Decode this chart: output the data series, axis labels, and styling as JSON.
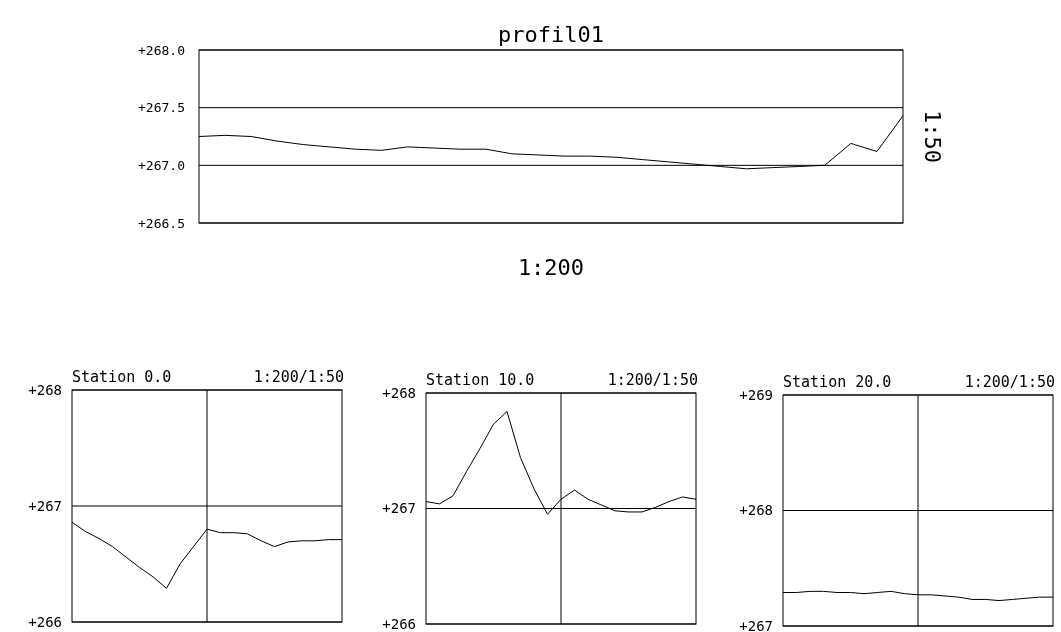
{
  "chart_data": [
    {
      "type": "line",
      "title": "profil01",
      "xlabel": "1:200",
      "y2label": "1:50",
      "categories": [
        null,
        null,
        null,
        null,
        null,
        null,
        null,
        null,
        null,
        null,
        null,
        null,
        null,
        null,
        null,
        null,
        null,
        null,
        null,
        null,
        null,
        null,
        null,
        null,
        null,
        null,
        null,
        null
      ],
      "series": [
        {
          "color": "#000000",
          "values": [
            267.25,
            267.26,
            267.25,
            267.21,
            267.18,
            267.16,
            267.14,
            267.13,
            267.16,
            267.15,
            267.14,
            267.14,
            267.1,
            267.09,
            267.08,
            267.08,
            267.07,
            267.05,
            267.03,
            267.01,
            266.99,
            266.97,
            266.98,
            266.99,
            267.0,
            267.19,
            267.12,
            267.43
          ]
        }
      ],
      "ylim": [
        266.5,
        268.0
      ],
      "yticks": [
        {
          "value": 266.5,
          "label": "+266.5"
        },
        {
          "value": 267.0,
          "label": "+267.0"
        },
        {
          "value": 267.5,
          "label": "+267.5"
        },
        {
          "value": 268.0,
          "label": "+268.0"
        }
      ],
      "grid": "y",
      "tick_labels": "y",
      "marker": "none"
    },
    {
      "type": "line",
      "title": "Station 0.0",
      "subtitle": "1:200/1:50",
      "categories": [
        null,
        null,
        null,
        null,
        null,
        null,
        null,
        null,
        null,
        null,
        null,
        null,
        null,
        null,
        null,
        null,
        null,
        null,
        null,
        null,
        null
      ],
      "series": [
        {
          "color": "#000000",
          "values": [
            266.86,
            266.78,
            266.72,
            266.65,
            266.56,
            266.47,
            266.39,
            266.29,
            266.5,
            266.65,
            266.8,
            266.77,
            266.77,
            266.76,
            266.7,
            266.65,
            266.69,
            266.7,
            266.7,
            266.71,
            266.71
          ]
        }
      ],
      "ylim": [
        266,
        268
      ],
      "yticks": [
        {
          "value": 266,
          "label": "+266"
        },
        {
          "value": 267,
          "label": "+267"
        },
        {
          "value": 268,
          "label": "+268"
        }
      ],
      "grid": true,
      "tick_labels": "y",
      "marker": "none"
    },
    {
      "type": "line",
      "title": "Station 10.0",
      "subtitle": "1:200/1:50",
      "categories": [
        null,
        null,
        null,
        null,
        null,
        null,
        null,
        null,
        null,
        null,
        null,
        null,
        null,
        null,
        null,
        null,
        null,
        null,
        null,
        null,
        null
      ],
      "series": [
        {
          "color": "#000000",
          "values": [
            267.06,
            267.04,
            267.11,
            267.32,
            267.52,
            267.73,
            267.84,
            267.44,
            267.17,
            266.95,
            267.08,
            267.16,
            267.08,
            267.03,
            266.98,
            266.97,
            266.97,
            267.01,
            267.06,
            267.1,
            267.08
          ]
        }
      ],
      "ylim": [
        266,
        268
      ],
      "yticks": [
        {
          "value": 266,
          "label": "+266"
        },
        {
          "value": 267,
          "label": "+267"
        },
        {
          "value": 268,
          "label": "+268"
        }
      ],
      "grid": true,
      "tick_labels": "y",
      "marker": "none"
    },
    {
      "type": "line",
      "title": "Station 20.0",
      "subtitle": "1:200/1:50",
      "categories": [
        null,
        null,
        null,
        null,
        null,
        null,
        null,
        null,
        null,
        null,
        null,
        null,
        null,
        null,
        null,
        null,
        null,
        null,
        null,
        null,
        null
      ],
      "series": [
        {
          "color": "#000000",
          "values": [
            267.29,
            267.29,
            267.3,
            267.3,
            267.29,
            267.29,
            267.28,
            267.29,
            267.3,
            267.28,
            267.27,
            267.27,
            267.26,
            267.25,
            267.23,
            267.23,
            267.22,
            267.23,
            267.24,
            267.25,
            267.25
          ]
        }
      ],
      "ylim": [
        267,
        269
      ],
      "yticks": [
        {
          "value": 267,
          "label": "+267"
        },
        {
          "value": 268,
          "label": "+268"
        },
        {
          "value": 269,
          "label": "+269"
        }
      ],
      "grid": true,
      "tick_labels": "y",
      "marker": "none"
    }
  ]
}
